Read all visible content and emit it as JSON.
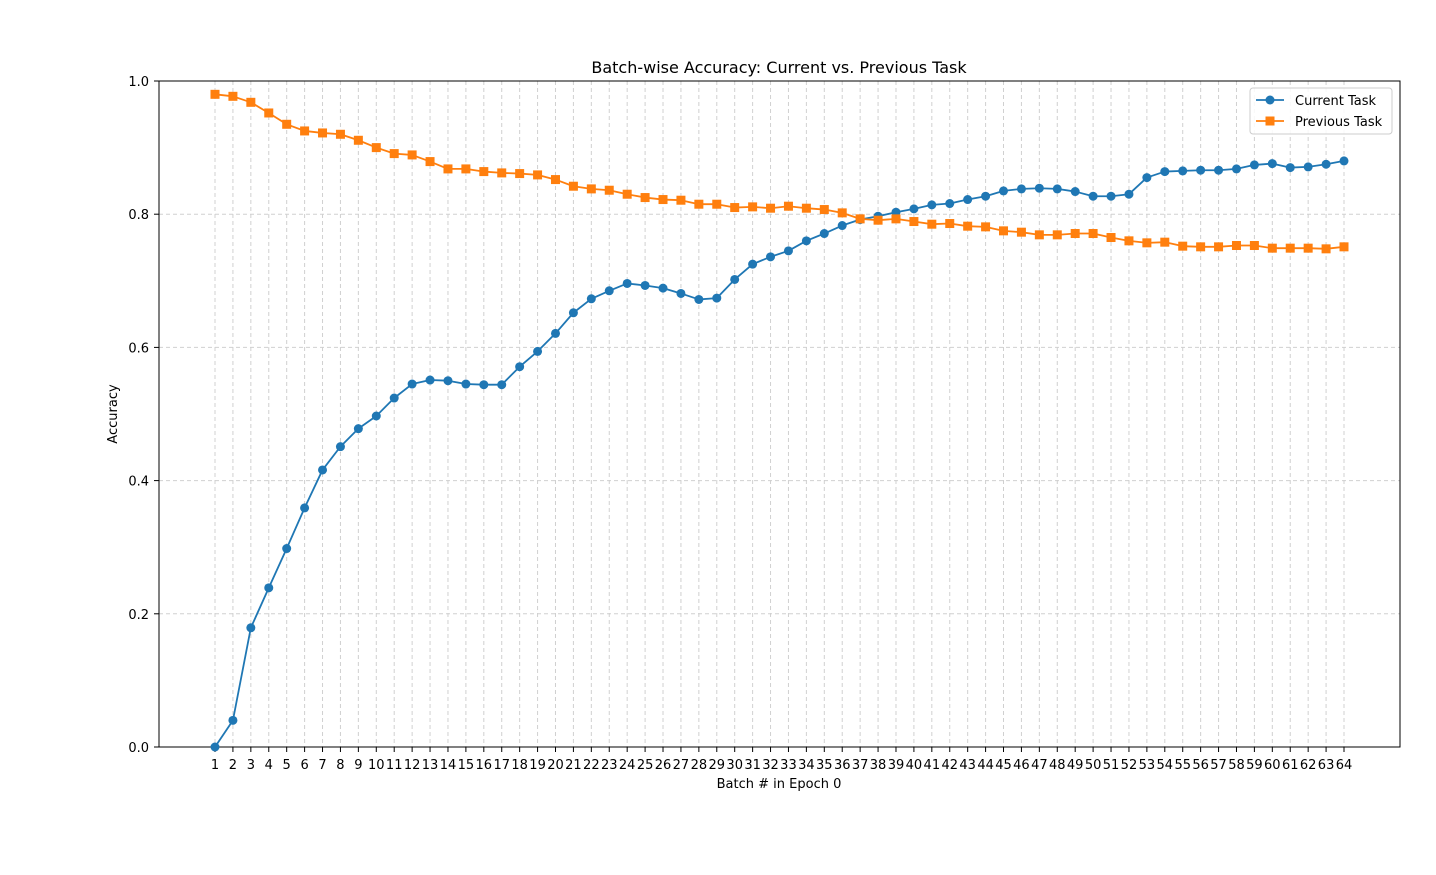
{
  "chart_data": {
    "type": "line",
    "title": "Batch-wise Accuracy: Current vs. Previous Task",
    "xlabel": "Batch # in Epoch 0",
    "ylabel": "Accuracy",
    "ylim": [
      0,
      1.0
    ],
    "yticks": [
      "0.0",
      "0.2",
      "0.4",
      "0.6",
      "0.8",
      "1.0"
    ],
    "grid": true,
    "legend_position": "top-right",
    "x": [
      1,
      2,
      3,
      4,
      5,
      6,
      7,
      8,
      9,
      10,
      11,
      12,
      13,
      14,
      15,
      16,
      17,
      18,
      19,
      20,
      21,
      22,
      23,
      24,
      25,
      26,
      27,
      28,
      29,
      30,
      31,
      32,
      33,
      34,
      35,
      36,
      37,
      38,
      39,
      40,
      41,
      42,
      43,
      44,
      45,
      46,
      47,
      48,
      49,
      50,
      51,
      52,
      53,
      54,
      55,
      56,
      57,
      58,
      59,
      60,
      61,
      62,
      63,
      64
    ],
    "series": [
      {
        "name": "Current Task",
        "color": "#1f77b4",
        "marker": "circle",
        "values": [
          0.0,
          0.04,
          0.179,
          0.239,
          0.298,
          0.359,
          0.416,
          0.451,
          0.478,
          0.497,
          0.524,
          0.545,
          0.551,
          0.55,
          0.545,
          0.544,
          0.544,
          0.571,
          0.594,
          0.621,
          0.652,
          0.673,
          0.685,
          0.696,
          0.693,
          0.689,
          0.681,
          0.672,
          0.674,
          0.702,
          0.725,
          0.736,
          0.745,
          0.76,
          0.771,
          0.783,
          0.792,
          0.797,
          0.803,
          0.808,
          0.814,
          0.816,
          0.822,
          0.827,
          0.835,
          0.838,
          0.839,
          0.838,
          0.834,
          0.827,
          0.827,
          0.83,
          0.855,
          0.864,
          0.865,
          0.866,
          0.866,
          0.868,
          0.874,
          0.876,
          0.87,
          0.871,
          0.875,
          0.88
        ]
      },
      {
        "name": "Previous Task",
        "color": "#ff7f0e",
        "marker": "square",
        "values": [
          0.98,
          0.977,
          0.968,
          0.952,
          0.935,
          0.925,
          0.922,
          0.92,
          0.911,
          0.9,
          0.891,
          0.889,
          0.879,
          0.868,
          0.868,
          0.864,
          0.862,
          0.861,
          0.859,
          0.852,
          0.842,
          0.838,
          0.836,
          0.83,
          0.825,
          0.822,
          0.821,
          0.815,
          0.815,
          0.81,
          0.811,
          0.809,
          0.812,
          0.809,
          0.807,
          0.802,
          0.793,
          0.791,
          0.793,
          0.789,
          0.785,
          0.786,
          0.782,
          0.781,
          0.775,
          0.773,
          0.769,
          0.769,
          0.771,
          0.771,
          0.765,
          0.76,
          0.757,
          0.758,
          0.752,
          0.751,
          0.751,
          0.753,
          0.753,
          0.749,
          0.749,
          0.749,
          0.748,
          0.751
        ]
      }
    ]
  }
}
